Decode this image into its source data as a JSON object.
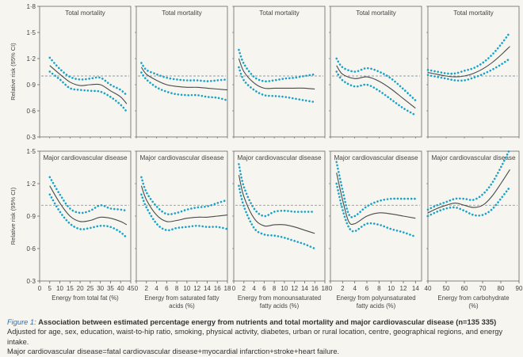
{
  "chart_data": {
    "type": "line",
    "ylabel": "Relative risk (95% CI)",
    "reference_line": 1.0,
    "rows": [
      {
        "ylim": [
          0.3,
          1.8
        ],
        "yticks": [
          0.3,
          0.6,
          0.9,
          1.2,
          1.5,
          1.8
        ],
        "ytick_labels": [
          "0·3",
          "0·6",
          "0·9",
          "1·2",
          "1·5",
          "1·8"
        ]
      },
      {
        "ylim": [
          0.3,
          1.5
        ],
        "yticks": [
          0.3,
          0.6,
          0.9,
          1.2,
          1.5
        ],
        "ytick_labels": [
          "0·3",
          "0·6",
          "0·9",
          "1·2",
          "1·5"
        ]
      }
    ],
    "columns": [
      {
        "xlabel": "Energy from total fat (%)",
        "xlim": [
          0,
          45
        ],
        "xticks": [
          0,
          5,
          10,
          15,
          20,
          25,
          30,
          35,
          40,
          45
        ]
      },
      {
        "xlabel": "Energy from saturated fatty acids (%)",
        "xlim": [
          0,
          18
        ],
        "xticks": [
          0,
          2,
          4,
          6,
          8,
          10,
          12,
          14,
          16,
          18
        ]
      },
      {
        "xlabel": "Energy from monounsaturated fatty acids (%)",
        "xlim": [
          0,
          18
        ],
        "xticks": [
          0,
          2,
          4,
          6,
          8,
          10,
          12,
          14,
          16,
          18
        ]
      },
      {
        "xlabel": "Energy from polyunsaturated fatty acids (%)",
        "xlim": [
          0,
          15
        ],
        "xticks": [
          0,
          2,
          4,
          6,
          8,
          10,
          12,
          14
        ]
      },
      {
        "xlabel": "Energy from carbohydrate (%)",
        "xlim": [
          40,
          90
        ],
        "xticks": [
          40,
          50,
          60,
          70,
          80,
          90
        ]
      }
    ],
    "panels": [
      {
        "row": 0,
        "col": 0,
        "title": "Total mortality",
        "x": [
          5,
          10,
          15,
          20,
          25,
          30,
          35,
          40,
          43
        ],
        "est": [
          1.12,
          1.02,
          0.93,
          0.89,
          0.9,
          0.9,
          0.83,
          0.76,
          0.68
        ],
        "lo": [
          1.05,
          0.96,
          0.86,
          0.84,
          0.83,
          0.82,
          0.76,
          0.67,
          0.59
        ],
        "hi": [
          1.21,
          1.08,
          0.99,
          0.96,
          0.97,
          0.98,
          0.9,
          0.84,
          0.78
        ]
      },
      {
        "row": 0,
        "col": 1,
        "title": "Total mortality",
        "x": [
          1,
          2,
          4,
          6,
          8,
          10,
          12,
          14,
          16,
          18
        ],
        "est": [
          1.1,
          1.02,
          0.95,
          0.9,
          0.88,
          0.87,
          0.87,
          0.86,
          0.85,
          0.84
        ],
        "lo": [
          1.04,
          0.96,
          0.87,
          0.82,
          0.79,
          0.78,
          0.78,
          0.76,
          0.75,
          0.72
        ],
        "hi": [
          1.15,
          1.07,
          1.02,
          0.98,
          0.96,
          0.95,
          0.95,
          0.94,
          0.95,
          0.96
        ]
      },
      {
        "row": 0,
        "col": 2,
        "title": "Total mortality",
        "x": [
          1,
          2,
          4,
          6,
          8,
          10,
          12,
          14,
          16
        ],
        "est": [
          1.2,
          1.05,
          0.92,
          0.86,
          0.86,
          0.86,
          0.86,
          0.86,
          0.85
        ],
        "lo": [
          1.1,
          0.95,
          0.84,
          0.78,
          0.77,
          0.76,
          0.74,
          0.72,
          0.7
        ],
        "hi": [
          1.3,
          1.14,
          0.99,
          0.94,
          0.95,
          0.97,
          0.98,
          1.0,
          1.02
        ]
      },
      {
        "row": 0,
        "col": 3,
        "title": "Total mortality",
        "x": [
          1,
          2,
          4,
          6,
          8,
          10,
          12,
          14
        ],
        "est": [
          1.12,
          1.02,
          0.97,
          0.99,
          0.94,
          0.85,
          0.74,
          0.63
        ],
        "lo": [
          1.05,
          0.95,
          0.88,
          0.9,
          0.83,
          0.73,
          0.63,
          0.55
        ],
        "hi": [
          1.2,
          1.1,
          1.05,
          1.09,
          1.05,
          0.97,
          0.85,
          0.72
        ]
      },
      {
        "row": 0,
        "col": 4,
        "title": "Total mortality",
        "x": [
          40,
          45,
          50,
          55,
          60,
          65,
          70,
          75,
          80,
          85
        ],
        "est": [
          1.04,
          1.02,
          1.0,
          0.99,
          1.0,
          1.03,
          1.08,
          1.15,
          1.24,
          1.34
        ],
        "lo": [
          1.01,
          0.99,
          0.97,
          0.95,
          0.95,
          0.98,
          1.02,
          1.07,
          1.13,
          1.2
        ],
        "hi": [
          1.07,
          1.05,
          1.03,
          1.03,
          1.06,
          1.09,
          1.15,
          1.24,
          1.36,
          1.5
        ]
      },
      {
        "row": 1,
        "col": 0,
        "title": "Major cardiovascular disease",
        "x": [
          5,
          10,
          15,
          20,
          25,
          30,
          35,
          40,
          43
        ],
        "est": [
          1.18,
          1.02,
          0.9,
          0.85,
          0.86,
          0.89,
          0.88,
          0.85,
          0.82
        ],
        "lo": [
          1.1,
          0.94,
          0.83,
          0.78,
          0.79,
          0.81,
          0.8,
          0.75,
          0.7
        ],
        "hi": [
          1.26,
          1.1,
          0.97,
          0.93,
          0.95,
          1.0,
          0.97,
          0.96,
          0.95
        ]
      },
      {
        "row": 1,
        "col": 1,
        "title": "Major cardiovascular disease",
        "x": [
          1,
          2,
          4,
          6,
          8,
          10,
          12,
          14,
          16,
          18
        ],
        "est": [
          1.18,
          1.05,
          0.91,
          0.85,
          0.86,
          0.88,
          0.89,
          0.89,
          0.9,
          0.91
        ],
        "lo": [
          1.1,
          0.98,
          0.83,
          0.77,
          0.79,
          0.8,
          0.81,
          0.8,
          0.8,
          0.78
        ],
        "hi": [
          1.26,
          1.12,
          0.99,
          0.92,
          0.93,
          0.96,
          0.98,
          0.99,
          1.02,
          1.05
        ]
      },
      {
        "row": 1,
        "col": 2,
        "title": "Major cardiovascular disease",
        "x": [
          1,
          2,
          4,
          6,
          8,
          10,
          12,
          14,
          16
        ],
        "est": [
          1.28,
          1.08,
          0.88,
          0.81,
          0.82,
          0.82,
          0.8,
          0.77,
          0.74
        ],
        "lo": [
          1.18,
          0.99,
          0.79,
          0.73,
          0.72,
          0.7,
          0.67,
          0.64,
          0.6
        ],
        "hi": [
          1.38,
          1.17,
          0.97,
          0.9,
          0.94,
          0.95,
          0.94,
          0.94,
          0.94
        ]
      },
      {
        "row": 1,
        "col": 3,
        "title": "Major cardiovascular disease",
        "x": [
          1,
          2,
          3,
          4,
          6,
          8,
          10,
          12,
          14
        ],
        "est": [
          1.3,
          1.05,
          0.85,
          0.83,
          0.9,
          0.93,
          0.92,
          0.9,
          0.88
        ],
        "lo": [
          1.2,
          0.96,
          0.8,
          0.76,
          0.83,
          0.82,
          0.78,
          0.75,
          0.71
        ],
        "hi": [
          1.4,
          1.14,
          0.92,
          0.9,
          0.99,
          1.04,
          1.06,
          1.06,
          1.06
        ]
      },
      {
        "row": 1,
        "col": 4,
        "title": "Major cardiovascular disease",
        "x": [
          40,
          45,
          50,
          55,
          60,
          65,
          70,
          75,
          80,
          85
        ],
        "est": [
          0.93,
          0.97,
          1.0,
          1.02,
          1.0,
          0.98,
          1.0,
          1.08,
          1.2,
          1.33
        ],
        "lo": [
          0.9,
          0.94,
          0.97,
          0.98,
          0.95,
          0.91,
          0.91,
          0.96,
          1.06,
          1.17
        ],
        "hi": [
          0.96,
          1.0,
          1.03,
          1.06,
          1.06,
          1.05,
          1.1,
          1.2,
          1.35,
          1.52
        ]
      }
    ]
  },
  "colors": {
    "estimate": "#4a4a4a",
    "ci": "#1aa3c7",
    "reference": "#8a9aa8",
    "axis": "#666666",
    "figure_label": "#2a6fb0"
  },
  "caption": {
    "label": "Figure 1:",
    "title": "Association between estimated percentage energy from nutrients and total mortality and major cardiovascular disease (n=135 335)",
    "line2": "Adjusted for age, sex, education, waist-to-hip ratio, smoking, physical activity, diabetes, urban or rural location, centre, geographical regions, and energy intake.",
    "line3": "Major cardiovascular disease=fatal cardiovascular disease+myocardial infarction+stroke+heart failure."
  }
}
